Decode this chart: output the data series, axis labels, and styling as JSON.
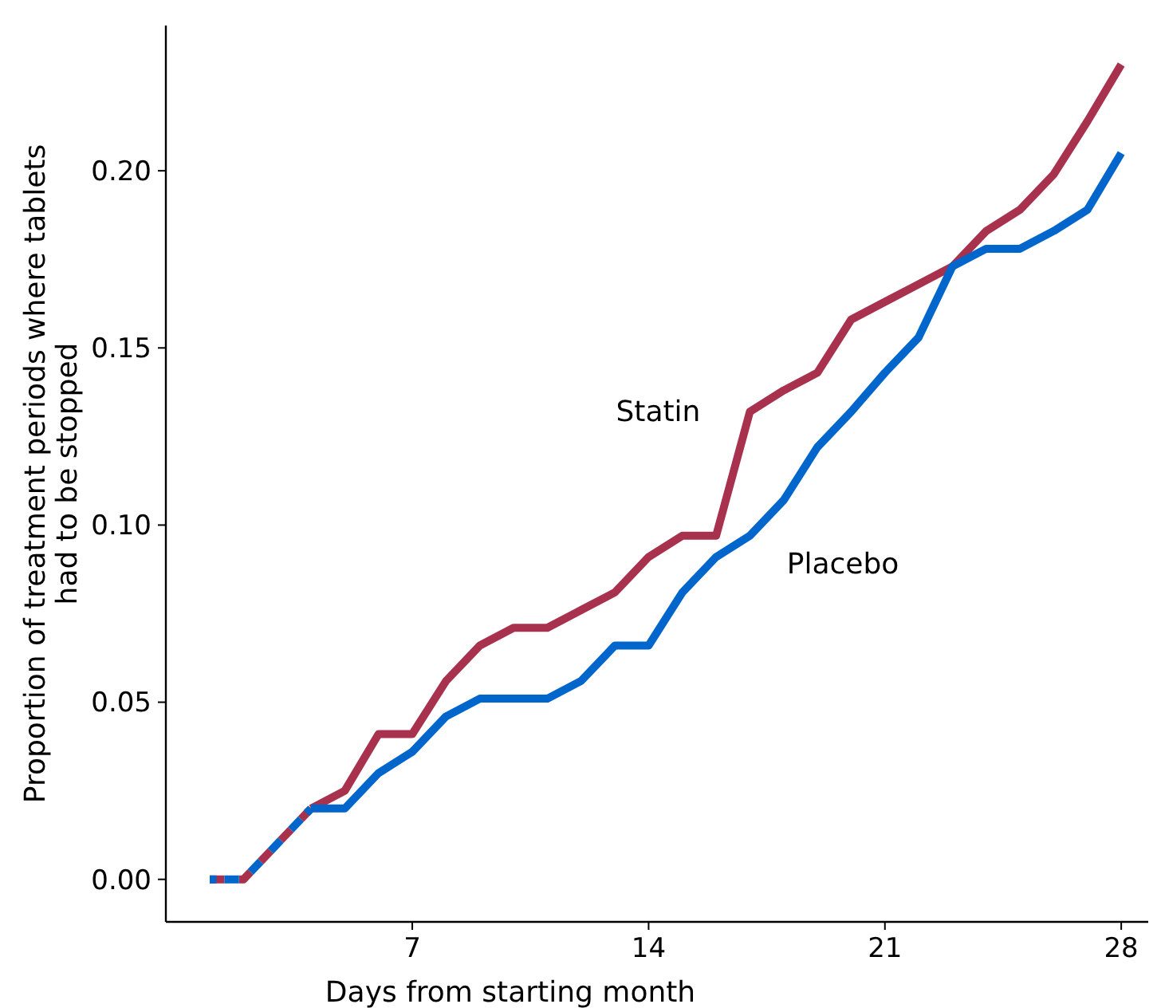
{
  "chart_data": {
    "type": "line",
    "xlabel": "Days from starting month",
    "ylabel": "Proportion of treatment periods where tablets\nhad to be stopped",
    "xlim": [
      -0.3,
      28.8
    ],
    "ylim": [
      -0.012,
      0.241
    ],
    "xticks": [
      7,
      14,
      21,
      28
    ],
    "yticks": [
      {
        "value": 0,
        "label": "0.00"
      },
      {
        "value": 0.05,
        "label": "0.05"
      },
      {
        "value": 0.1,
        "label": "0.10"
      },
      {
        "value": 0.15,
        "label": "0.15"
      },
      {
        "value": 0.2,
        "label": "0.20"
      }
    ],
    "grid": false,
    "legend": false,
    "marker": "none",
    "series": [
      {
        "name": "Statin",
        "color": "#a8324e",
        "line_style": "solid",
        "x": [
          4,
          5,
          6,
          7,
          8,
          9,
          10,
          11,
          12,
          13,
          14,
          15,
          16,
          17,
          18,
          19,
          20,
          21,
          22,
          23,
          24,
          25,
          26,
          27,
          28
        ],
        "values": [
          0.02,
          0.025,
          0.041,
          0.041,
          0.056,
          0.066,
          0.071,
          0.071,
          0.076,
          0.081,
          0.091,
          0.097,
          0.097,
          0.132,
          0.138,
          0.143,
          0.158,
          0.163,
          0.168,
          0.173,
          0.183,
          0.189,
          0.199,
          0.214,
          0.23
        ]
      },
      {
        "name": "Placebo",
        "color": "#0066cc",
        "line_style": "solid",
        "x": [
          4,
          5,
          6,
          7,
          8,
          9,
          10,
          11,
          12,
          13,
          14,
          15,
          16,
          17,
          18,
          19,
          20,
          21,
          22,
          23,
          24,
          25,
          26,
          27,
          28
        ],
        "values": [
          0.02,
          0.02,
          0.03,
          0.036,
          0.046,
          0.051,
          0.051,
          0.051,
          0.056,
          0.066,
          0.066,
          0.081,
          0.091,
          0.097,
          0.107,
          0.122,
          0.132,
          0.143,
          0.153,
          0.173,
          0.178,
          0.178,
          0.183,
          0.189,
          0.205
        ]
      },
      {
        "color": "#a8324e",
        "line_style": "dashed",
        "x": [
          1,
          2,
          3,
          4
        ],
        "values": [
          0,
          0,
          0.01,
          0.02
        ]
      },
      {
        "color": "#0066cc",
        "line_style": "dashed",
        "x": [
          1,
          2,
          3,
          4
        ],
        "values": [
          0,
          0,
          0.01,
          0.02
        ]
      }
    ]
  }
}
